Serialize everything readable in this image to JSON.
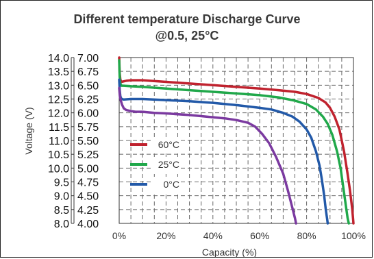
{
  "chart_data": {
    "type": "line",
    "title": "Different temperature Discharge Curve",
    "subtitle": "@0.5, 25°C",
    "xlabel": "Capacity (%)",
    "ylabel": "Voltage (V)",
    "xlim": [
      0,
      100
    ],
    "ylim": [
      4.0,
      7.0
    ],
    "x_ticks": [
      "0%",
      "20%",
      "40%",
      "60%",
      "80%",
      "100%"
    ],
    "y_ticks_outer": [
      "14.0",
      "13.5",
      "13.0",
      "12.5",
      "12.0",
      "11.5",
      "11.0",
      "10.5",
      "10.0",
      "9.5",
      "9.0",
      "8.5",
      "8.0"
    ],
    "y_ticks_inner": [
      "7.00",
      "6.75",
      "6.50",
      "6.25",
      "6.00",
      "5.75",
      "5.50",
      "5.25",
      "5.00",
      "4.75",
      "4.50",
      "4.25",
      "4.00"
    ],
    "grid": true,
    "grid_style": "dashed",
    "legend_position": "center-left",
    "series": [
      {
        "name": "60°C",
        "color": "#c0222e",
        "x": [
          0,
          0.2,
          0.5,
          1,
          2,
          3,
          5,
          10,
          20,
          30,
          40,
          50,
          60,
          68,
          75,
          80,
          85,
          88,
          90,
          92,
          94,
          96,
          97.5,
          98.5,
          99.5,
          100
        ],
        "y": [
          7.0,
          6.72,
          6.6,
          6.56,
          6.57,
          6.58,
          6.59,
          6.59,
          6.56,
          6.53,
          6.5,
          6.47,
          6.44,
          6.41,
          6.38,
          6.34,
          6.27,
          6.19,
          6.09,
          5.93,
          5.7,
          5.3,
          4.9,
          4.6,
          4.25,
          4.0
        ]
      },
      {
        "name": "25°C",
        "color": "#20a84a",
        "x": [
          0,
          0.2,
          0.5,
          1,
          2,
          5,
          10,
          20,
          30,
          40,
          50,
          60,
          68,
          75,
          80,
          84,
          87,
          89,
          91,
          93,
          94.5,
          95.5,
          96.5,
          97.5,
          98
        ],
        "y": [
          6.95,
          6.65,
          6.53,
          6.49,
          6.49,
          6.48,
          6.47,
          6.44,
          6.41,
          6.38,
          6.35,
          6.32,
          6.28,
          6.22,
          6.16,
          6.06,
          5.93,
          5.8,
          5.6,
          5.3,
          5.0,
          4.7,
          4.4,
          4.1,
          4.0
        ]
      },
      {
        "name": "0°C",
        "color": "#2259a8",
        "x": [
          0,
          0.2,
          0.5,
          1,
          2,
          5,
          10,
          20,
          30,
          40,
          50,
          60,
          65,
          70,
          74,
          77,
          80,
          82,
          84,
          85.5,
          86.5,
          87.5,
          88.2,
          88.8,
          89
        ],
        "y": [
          6.6,
          6.42,
          6.3,
          6.25,
          6.24,
          6.25,
          6.25,
          6.23,
          6.21,
          6.18,
          6.14,
          6.09,
          6.06,
          6.0,
          5.93,
          5.84,
          5.7,
          5.55,
          5.3,
          5.05,
          4.8,
          4.5,
          4.25,
          4.07,
          4.0
        ]
      },
      {
        "name": "",
        "color": "#7b3aa0",
        "x": [
          0,
          0.3,
          0.7,
          1.2,
          2,
          3,
          5,
          7,
          10,
          15,
          20,
          30,
          40,
          45,
          50,
          55,
          58,
          61,
          64,
          67,
          70,
          72,
          73.5,
          75,
          75.5
        ],
        "y": [
          6.45,
          6.3,
          6.22,
          6.15,
          6.08,
          6.05,
          6.03,
          6.02,
          6.02,
          6.0,
          5.99,
          5.96,
          5.92,
          5.9,
          5.87,
          5.82,
          5.75,
          5.62,
          5.45,
          5.2,
          4.9,
          4.6,
          4.35,
          4.1,
          4.0
        ]
      }
    ]
  }
}
